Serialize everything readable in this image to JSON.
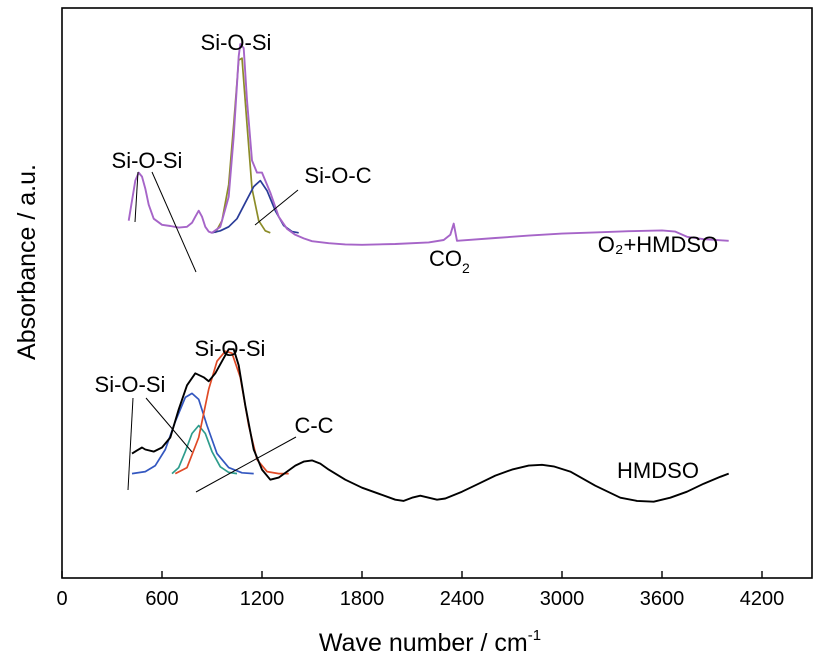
{
  "chart_data": {
    "type": "line",
    "title": "",
    "xlabel": "Wave number / cm",
    "xlabel_sup": "-1",
    "ylabel": "Absorbance / a.u.",
    "xlim": [
      0,
      4500
    ],
    "xticks": [
      0,
      600,
      1200,
      1800,
      2400,
      3000,
      3600,
      4200
    ],
    "yticks_shown": false,
    "y_units": "arbitrary, stacked spectra",
    "ylim": [
      0,
      100
    ],
    "grid": false,
    "legend": "none",
    "series": [
      {
        "name": "O2+HMDSO",
        "role": "spectrum",
        "color": "#A665C8",
        "points": [
          [
            400,
            14.0
          ],
          [
            440,
            24.0
          ],
          [
            460,
            26.0
          ],
          [
            480,
            25.0
          ],
          [
            500,
            22.0
          ],
          [
            520,
            18.0
          ],
          [
            550,
            14.5
          ],
          [
            600,
            13.0
          ],
          [
            650,
            12.7
          ],
          [
            700,
            12.3
          ],
          [
            750,
            12.5
          ],
          [
            780,
            13.5
          ],
          [
            800,
            15.0
          ],
          [
            820,
            16.5
          ],
          [
            840,
            15.0
          ],
          [
            860,
            12.5
          ],
          [
            880,
            11.3
          ],
          [
            900,
            11.0
          ],
          [
            950,
            12.5
          ],
          [
            1000,
            20.0
          ],
          [
            1030,
            35.0
          ],
          [
            1050,
            48.0
          ],
          [
            1060,
            55.0
          ],
          [
            1070,
            58.0
          ],
          [
            1090,
            57.0
          ],
          [
            1110,
            44.0
          ],
          [
            1140,
            29.0
          ],
          [
            1170,
            26.0
          ],
          [
            1200,
            26.0
          ],
          [
            1250,
            21.0
          ],
          [
            1300,
            15.0
          ],
          [
            1350,
            12.0
          ],
          [
            1400,
            10.5
          ],
          [
            1450,
            9.6
          ],
          [
            1500,
            8.9
          ],
          [
            1600,
            8.4
          ],
          [
            1700,
            8.1
          ],
          [
            1800,
            8.0
          ],
          [
            2000,
            8.2
          ],
          [
            2200,
            8.6
          ],
          [
            2290,
            9.2
          ],
          [
            2330,
            10.5
          ],
          [
            2350,
            13.3
          ],
          [
            2370,
            9.0
          ],
          [
            2400,
            9.1
          ],
          [
            2600,
            9.7
          ],
          [
            2800,
            10.3
          ],
          [
            3000,
            10.8
          ],
          [
            3200,
            11.1
          ],
          [
            3400,
            11.4
          ],
          [
            3600,
            11.6
          ],
          [
            3680,
            11.3
          ],
          [
            3750,
            10.0
          ],
          [
            3850,
            9.4
          ],
          [
            4000,
            9.0
          ]
        ]
      },
      {
        "name": "O2+HMDSO fit Si-O-Si",
        "role": "fit",
        "color": "#8C8C28",
        "points": [
          [
            920,
            11.0
          ],
          [
            960,
            14.0
          ],
          [
            1000,
            23.0
          ],
          [
            1030,
            38.0
          ],
          [
            1060,
            54.0
          ],
          [
            1080,
            54.5
          ],
          [
            1110,
            38.0
          ],
          [
            1140,
            22.0
          ],
          [
            1180,
            14.0
          ],
          [
            1220,
            11.5
          ],
          [
            1250,
            11.0
          ]
        ]
      },
      {
        "name": "O2+HMDSO fit Si-O-C",
        "role": "fit",
        "color": "#2A3C98",
        "points": [
          [
            900,
            11.0
          ],
          [
            950,
            11.5
          ],
          [
            1000,
            12.5
          ],
          [
            1050,
            14.5
          ],
          [
            1100,
            18.5
          ],
          [
            1150,
            22.5
          ],
          [
            1190,
            24.0
          ],
          [
            1230,
            21.5
          ],
          [
            1280,
            16.5
          ],
          [
            1330,
            12.8
          ],
          [
            1380,
            11.3
          ],
          [
            1420,
            11.0
          ]
        ]
      },
      {
        "name": "HMDSO",
        "role": "spectrum",
        "color": "#000000",
        "points": [
          [
            420,
            -44.0
          ],
          [
            450,
            -43.2
          ],
          [
            480,
            -42.5
          ],
          [
            500,
            -43.0
          ],
          [
            550,
            -43.5
          ],
          [
            600,
            -42.5
          ],
          [
            650,
            -40.0
          ],
          [
            700,
            -33.0
          ],
          [
            750,
            -27.0
          ],
          [
            800,
            -24.0
          ],
          [
            850,
            -25.0
          ],
          [
            880,
            -26.0
          ],
          [
            920,
            -24.0
          ],
          [
            960,
            -21.0
          ],
          [
            1000,
            -18.0
          ],
          [
            1030,
            -18.0
          ],
          [
            1060,
            -22.0
          ],
          [
            1100,
            -32.0
          ],
          [
            1150,
            -43.0
          ],
          [
            1200,
            -48.0
          ],
          [
            1250,
            -50.5
          ],
          [
            1300,
            -50.0
          ],
          [
            1350,
            -48.5
          ],
          [
            1400,
            -47.0
          ],
          [
            1450,
            -46.0
          ],
          [
            1500,
            -45.7
          ],
          [
            1550,
            -46.5
          ],
          [
            1600,
            -48.0
          ],
          [
            1700,
            -50.5
          ],
          [
            1800,
            -52.5
          ],
          [
            1900,
            -54.0
          ],
          [
            2000,
            -55.5
          ],
          [
            2050,
            -55.8
          ],
          [
            2100,
            -55.0
          ],
          [
            2150,
            -54.5
          ],
          [
            2200,
            -55.0
          ],
          [
            2250,
            -55.5
          ],
          [
            2300,
            -55.2
          ],
          [
            2400,
            -53.5
          ],
          [
            2500,
            -51.5
          ],
          [
            2600,
            -49.5
          ],
          [
            2700,
            -48.0
          ],
          [
            2800,
            -47.0
          ],
          [
            2880,
            -46.8
          ],
          [
            2950,
            -47.2
          ],
          [
            3050,
            -48.5
          ],
          [
            3200,
            -52.0
          ],
          [
            3350,
            -55.0
          ],
          [
            3450,
            -55.8
          ],
          [
            3550,
            -56.0
          ],
          [
            3650,
            -55.0
          ],
          [
            3750,
            -53.5
          ],
          [
            3850,
            -51.5
          ],
          [
            3950,
            -49.8
          ],
          [
            4000,
            -49.0
          ]
        ]
      },
      {
        "name": "HMDSO fit Si-O-Si (1)",
        "role": "fit",
        "color": "#3357C0",
        "points": [
          [
            420,
            -49.0
          ],
          [
            500,
            -48.5
          ],
          [
            560,
            -47.0
          ],
          [
            620,
            -43.0
          ],
          [
            680,
            -36.0
          ],
          [
            740,
            -30.0
          ],
          [
            780,
            -29.0
          ],
          [
            820,
            -30.5
          ],
          [
            870,
            -37.0
          ],
          [
            930,
            -44.0
          ],
          [
            1000,
            -47.5
          ],
          [
            1080,
            -48.8
          ],
          [
            1150,
            -49.0
          ]
        ]
      },
      {
        "name": "HMDSO fit C-C",
        "role": "fit",
        "color": "#2E9C8C",
        "points": [
          [
            660,
            -49.0
          ],
          [
            700,
            -47.5
          ],
          [
            740,
            -43.5
          ],
          [
            780,
            -39.0
          ],
          [
            820,
            -37.0
          ],
          [
            860,
            -39.0
          ],
          [
            900,
            -43.5
          ],
          [
            950,
            -47.3
          ],
          [
            1000,
            -48.7
          ],
          [
            1050,
            -49.0
          ]
        ]
      },
      {
        "name": "HMDSO fit Si-O-Si (2)",
        "role": "fit",
        "color": "#E04A26",
        "points": [
          [
            680,
            -49.0
          ],
          [
            750,
            -47.5
          ],
          [
            820,
            -40.0
          ],
          [
            880,
            -28.0
          ],
          [
            930,
            -21.0
          ],
          [
            980,
            -18.5
          ],
          [
            1020,
            -19.0
          ],
          [
            1070,
            -25.0
          ],
          [
            1120,
            -37.0
          ],
          [
            1170,
            -45.5
          ],
          [
            1230,
            -48.5
          ],
          [
            1300,
            -49.0
          ],
          [
            1360,
            -49.0
          ]
        ]
      }
    ],
    "annotations": {
      "top_peak_label": "Si-O-Si",
      "top_left_label": "Si-O-Si",
      "top_sioc_label": "Si-O-C",
      "co2_base": "CO",
      "co2_sub": "2",
      "top_series_label": "O₂+HMDSO",
      "bottom_peak_label": "Si-O-Si",
      "bottom_left_label": "Si-O-Si",
      "bottom_cc_label": "C-C",
      "bottom_series_label": "HMDSO"
    }
  }
}
